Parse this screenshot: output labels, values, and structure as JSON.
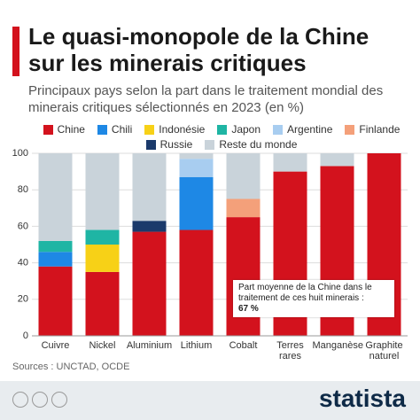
{
  "chart_data": {
    "type": "stacked-bar",
    "title": "Le quasi-monopole de la Chine sur les minerais critiques",
    "subtitle": "Principaux pays selon la part dans le traitement mondial des minerais critiques sélectionnés en 2023 (en %)",
    "categories": [
      "Cuivre",
      "Nickel",
      "Aluminium",
      "Lithium",
      "Cobalt",
      "Terres rares",
      "Manganèse",
      "Graphite naturel"
    ],
    "series": [
      {
        "name": "Chine",
        "color": "#d3121d",
        "values": [
          38,
          35,
          57,
          58,
          65,
          90,
          93,
          100
        ]
      },
      {
        "name": "Chili",
        "color": "#1e88e5",
        "values": [
          8,
          null,
          null,
          29,
          null,
          null,
          null,
          null
        ]
      },
      {
        "name": "Indonésie",
        "color": "#f7d117",
        "values": [
          null,
          15,
          null,
          null,
          null,
          null,
          null,
          null
        ]
      },
      {
        "name": "Japon",
        "color": "#1fb5a4",
        "values": [
          6,
          8,
          null,
          null,
          null,
          null,
          null,
          null
        ]
      },
      {
        "name": "Argentine",
        "color": "#a8cdf0",
        "values": [
          null,
          null,
          null,
          10,
          null,
          null,
          null,
          null
        ]
      },
      {
        "name": "Finlande",
        "color": "#f4a07a",
        "values": [
          null,
          null,
          null,
          null,
          10,
          null,
          null,
          null
        ]
      },
      {
        "name": "Russie",
        "color": "#1b3a6b",
        "values": [
          null,
          null,
          6,
          null,
          null,
          null,
          null,
          null
        ]
      },
      {
        "name": "Reste du monde",
        "color": "#c9d3da",
        "values": [
          48,
          42,
          37,
          3,
          25,
          10,
          7,
          null
        ]
      }
    ],
    "ylim": [
      0,
      100
    ],
    "yticks": [
      0,
      20,
      40,
      60,
      80,
      100
    ],
    "grid": true,
    "annotation": {
      "text": "Part moyenne de la Chine dans le traitement de ces huit minerais :",
      "value": "67 %"
    },
    "source": "Sources : UNCTAD, OCDE",
    "logo": "statista"
  }
}
